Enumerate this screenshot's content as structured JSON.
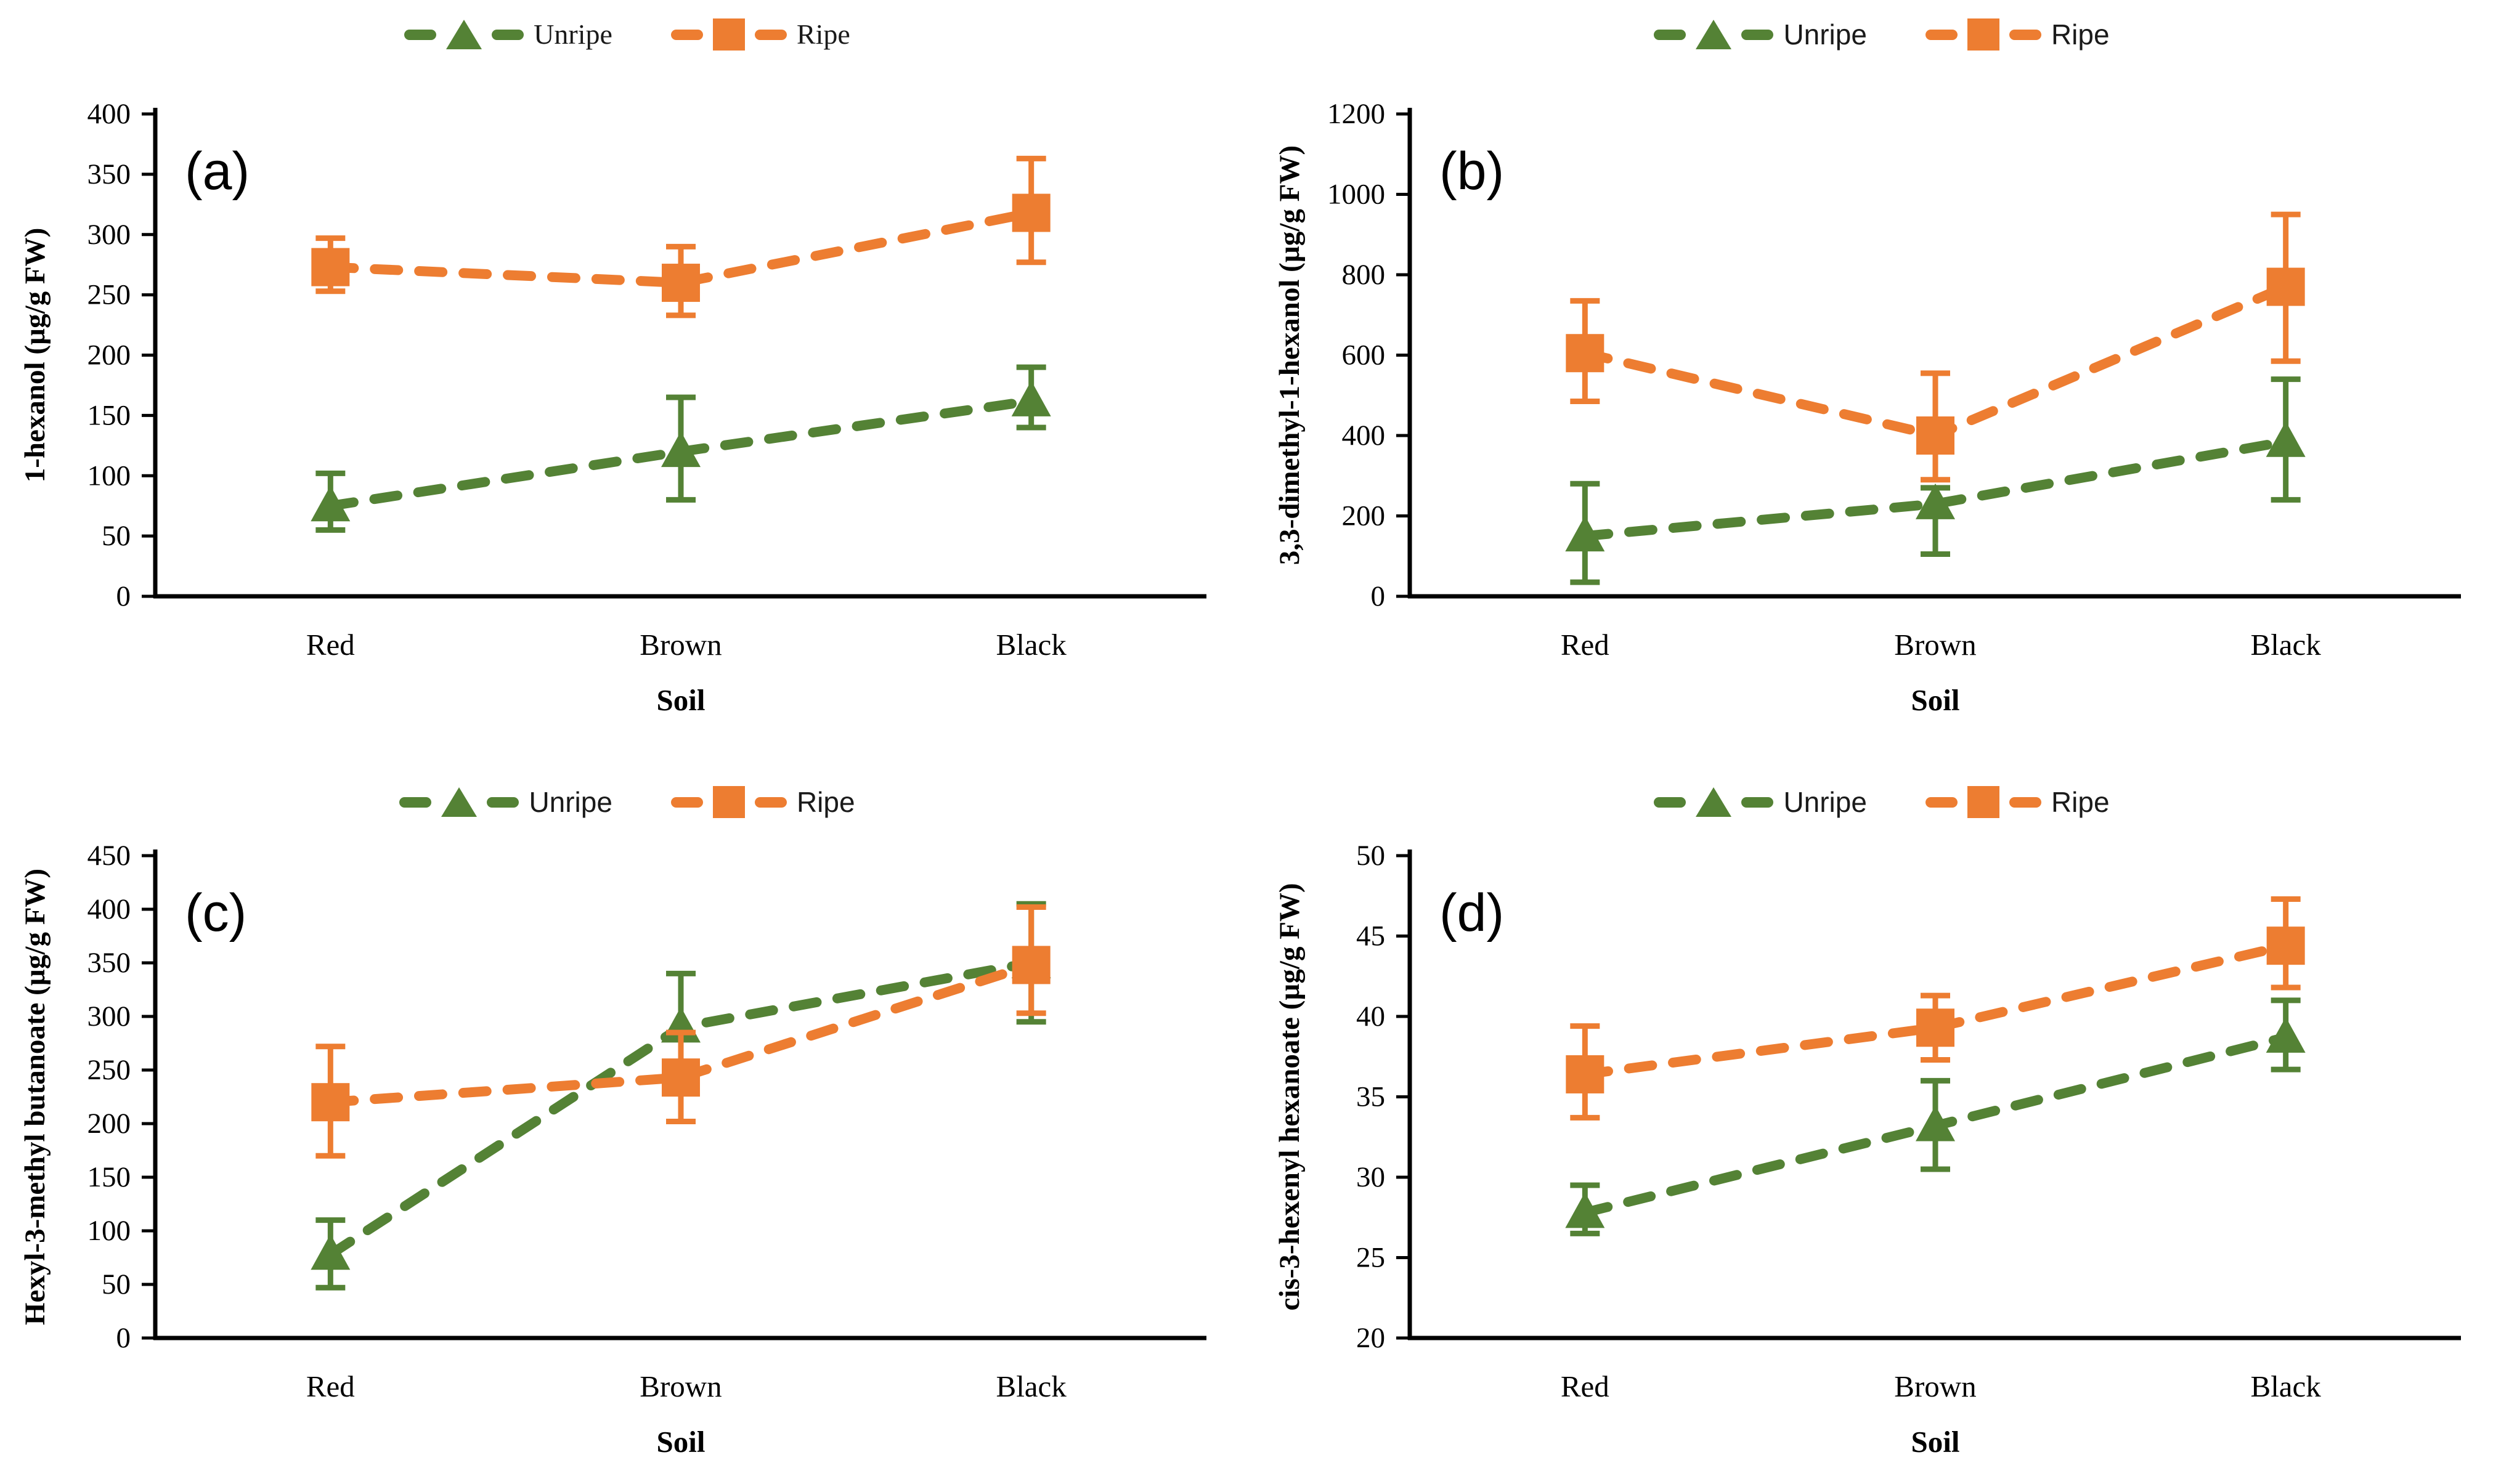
{
  "figure": {
    "background": "#ffffff"
  },
  "colors": {
    "unripe": "#548235",
    "ripe": "#ED7D31",
    "axis": "#000000",
    "text": "#000000"
  },
  "legend": {
    "unripe_label": "Unripe",
    "ripe_label": "Ripe"
  },
  "chart_data": [
    {
      "type": "line",
      "panel_label": "(a)",
      "ylabel": "1-hexanol  (µg/g FW)",
      "xlabel": "Soil",
      "categories": [
        "Red",
        "Brown",
        "Black"
      ],
      "ylim": [
        0,
        400
      ],
      "ytick_step": 50,
      "grid": false,
      "legend_position": "top",
      "series": [
        {
          "name": "Unripe",
          "marker": "triangle",
          "color_key": "unripe",
          "values": [
            75,
            120,
            162
          ],
          "err_minus": [
            20,
            40,
            22
          ],
          "err_plus": [
            27,
            45,
            28
          ]
        },
        {
          "name": "Ripe",
          "marker": "square",
          "color_key": "ripe",
          "values": [
            273,
            260,
            318
          ],
          "err_minus": [
            20,
            27,
            41
          ],
          "err_plus": [
            24,
            30,
            45
          ]
        }
      ]
    },
    {
      "type": "line",
      "panel_label": "(b)",
      "ylabel": "3,3-dimethyl-1-hexanol (µg/g FW)",
      "xlabel": "Soil",
      "categories": [
        "Red",
        "Brown",
        "Black"
      ],
      "ylim": [
        0,
        1200
      ],
      "ytick_step": 200,
      "grid": false,
      "legend_position": "top",
      "series": [
        {
          "name": "Unripe",
          "marker": "triangle",
          "color_key": "unripe",
          "values": [
            150,
            230,
            385
          ],
          "err_minus": [
            115,
            125,
            145
          ],
          "err_plus": [
            130,
            40,
            155
          ]
        },
        {
          "name": "Ripe",
          "marker": "square",
          "color_key": "ripe",
          "values": [
            605,
            400,
            770
          ],
          "err_minus": [
            120,
            110,
            185
          ],
          "err_plus": [
            130,
            155,
            180
          ]
        }
      ]
    },
    {
      "type": "line",
      "panel_label": "(c)",
      "ylabel": "Hexyl-3-methyl butanoate (µg/g FW)",
      "xlabel": "Soil",
      "categories": [
        "Red",
        "Brown",
        "Black"
      ],
      "ylim": [
        0,
        450
      ],
      "ytick_step": 50,
      "grid": false,
      "legend_position": "top",
      "series": [
        {
          "name": "Unripe",
          "marker": "triangle",
          "color_key": "unripe",
          "values": [
            78,
            290,
            350
          ],
          "err_minus": [
            31,
            45,
            55
          ],
          "err_plus": [
            32,
            50,
            55
          ]
        },
        {
          "name": "Ripe",
          "marker": "square",
          "color_key": "ripe",
          "values": [
            220,
            243,
            348
          ],
          "err_minus": [
            50,
            41,
            45
          ],
          "err_plus": [
            52,
            42,
            54
          ]
        }
      ]
    },
    {
      "type": "line",
      "panel_label": "(d)",
      "ylabel": "cis-3-hexenyl hexanoate (µg/g FW)",
      "xlabel": "Soil",
      "categories": [
        "Red",
        "Brown",
        "Black"
      ],
      "ylim": [
        20,
        50
      ],
      "ytick_step": 5,
      "grid": false,
      "legend_position": "top",
      "series": [
        {
          "name": "Unripe",
          "marker": "triangle",
          "color_key": "unripe",
          "values": [
            27.8,
            33.2,
            38.7
          ],
          "err_minus": [
            1.3,
            2.7,
            2.0
          ],
          "err_plus": [
            1.7,
            2.8,
            2.3
          ]
        },
        {
          "name": "Ripe",
          "marker": "square",
          "color_key": "ripe",
          "values": [
            36.4,
            39.3,
            44.4
          ],
          "err_minus": [
            2.7,
            2.0,
            2.6
          ],
          "err_plus": [
            3.0,
            2.0,
            2.9
          ]
        }
      ]
    }
  ]
}
